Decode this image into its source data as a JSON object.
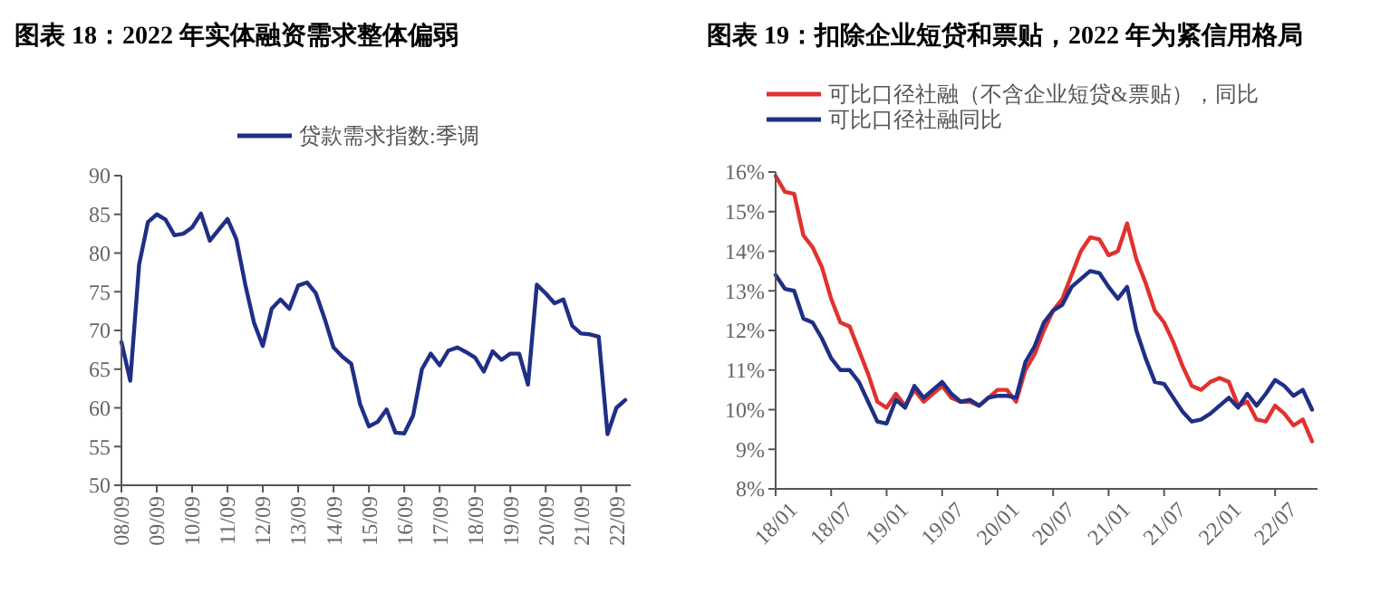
{
  "chart_data": [
    {
      "type": "line",
      "title": "图表 18：2022 年实体融资需求整体偏弱",
      "categories": [
        "08/09",
        null,
        null,
        null,
        "09/09",
        null,
        null,
        null,
        "10/09",
        null,
        null,
        null,
        "11/09",
        null,
        null,
        null,
        "12/09",
        null,
        null,
        null,
        "13/09",
        null,
        null,
        null,
        "14/09",
        null,
        null,
        null,
        "15/09",
        null,
        null,
        null,
        "16/09",
        null,
        null,
        null,
        "17/09",
        null,
        null,
        null,
        "18/09",
        null,
        null,
        null,
        "19/09",
        null,
        null,
        null,
        "20/09",
        null,
        null,
        null,
        "21/09",
        null,
        null,
        null,
        "22/09",
        null
      ],
      "series": [
        {
          "name": "贷款需求指数:季调",
          "color": "#1f2f86",
          "values": [
            68.5,
            63.5,
            78.5,
            84,
            85,
            84.3,
            82.3,
            82.5,
            83.3,
            85.1,
            81.6,
            83,
            84.4,
            81.8,
            76,
            71,
            68,
            72.8,
            74,
            72.8,
            75.8,
            76.2,
            74.8,
            71.5,
            67.8,
            66.6,
            65.7,
            60.5,
            57.6,
            58.2,
            59.8,
            56.8,
            56.7,
            59,
            65,
            67,
            65.5,
            67.4,
            67.8,
            67.2,
            66.5,
            64.7,
            67.3,
            66.2,
            67,
            67,
            63,
            75.9,
            74.8,
            73.5,
            74,
            70.6,
            69.6,
            69.5,
            69.2,
            56.6,
            60,
            61
          ]
        }
      ],
      "ylim": [
        50,
        90
      ],
      "yticks": [
        50,
        55,
        60,
        65,
        70,
        75,
        80,
        85,
        90
      ],
      "grid": false,
      "legend": "top",
      "marker": "none",
      "line_style": "solid"
    },
    {
      "type": "line",
      "title": "图表 19：扣除企业短贷和票贴，2022 年为紧信用格局",
      "categories": [
        "18/01",
        null,
        null,
        null,
        null,
        null,
        "18/07",
        null,
        null,
        null,
        null,
        null,
        "19/01",
        null,
        null,
        null,
        null,
        null,
        "19/07",
        null,
        null,
        null,
        null,
        null,
        "20/01",
        null,
        null,
        null,
        null,
        null,
        "20/07",
        null,
        null,
        null,
        null,
        null,
        "21/01",
        null,
        null,
        null,
        null,
        null,
        "21/07",
        null,
        null,
        null,
        null,
        null,
        "22/01",
        null,
        null,
        null,
        null,
        null,
        "22/07",
        null,
        null,
        null,
        null
      ],
      "series": [
        {
          "name": "可比口径社融（不含企业短贷&票贴），同比",
          "color": "#e0322f",
          "values": [
            15.9,
            15.5,
            15.45,
            14.4,
            14.1,
            13.6,
            12.8,
            12.2,
            12.1,
            11.5,
            10.9,
            10.2,
            10.05,
            10.4,
            10.1,
            10.5,
            10.2,
            10.4,
            10.6,
            10.3,
            10.2,
            10.2,
            10.1,
            10.3,
            10.5,
            10.5,
            10.2,
            11.0,
            11.4,
            12.0,
            12.5,
            12.8,
            13.4,
            14.0,
            14.35,
            14.3,
            13.9,
            14.0,
            14.7,
            13.8,
            13.2,
            12.5,
            12.2,
            11.7,
            11.1,
            10.6,
            10.5,
            10.7,
            10.8,
            10.7,
            10.1,
            10.2,
            9.75,
            9.7,
            10.1,
            9.9,
            9.6,
            9.75,
            9.2
          ]
        },
        {
          "name": "可比口径社融同比",
          "color": "#1f2f86",
          "values": [
            13.4,
            13.05,
            13.0,
            12.3,
            12.2,
            11.8,
            11.3,
            11.0,
            11.0,
            10.7,
            10.2,
            9.7,
            9.65,
            10.25,
            10.05,
            10.6,
            10.3,
            10.5,
            10.7,
            10.4,
            10.2,
            10.25,
            10.1,
            10.3,
            10.35,
            10.35,
            10.3,
            11.2,
            11.6,
            12.2,
            12.5,
            12.65,
            13.1,
            13.3,
            13.5,
            13.45,
            13.1,
            12.8,
            13.1,
            12.0,
            11.3,
            10.7,
            10.65,
            10.3,
            9.95,
            9.7,
            9.75,
            9.9,
            10.1,
            10.3,
            10.05,
            10.4,
            10.1,
            10.4,
            10.75,
            10.6,
            10.35,
            10.5,
            10.0
          ]
        }
      ],
      "ylim": [
        8,
        16
      ],
      "yticks": [
        {
          "value": 8,
          "label": "8%"
        },
        {
          "value": 9,
          "label": "9%"
        },
        {
          "value": 10,
          "label": "10%"
        },
        {
          "value": 11,
          "label": "11%"
        },
        {
          "value": 12,
          "label": "12%"
        },
        {
          "value": 13,
          "label": "13%"
        },
        {
          "value": 14,
          "label": "14%"
        },
        {
          "value": 15,
          "label": "15%"
        },
        {
          "value": 16,
          "label": "16%"
        }
      ],
      "grid": false,
      "legend": "top left",
      "marker": "none",
      "line_style": "solid"
    }
  ]
}
